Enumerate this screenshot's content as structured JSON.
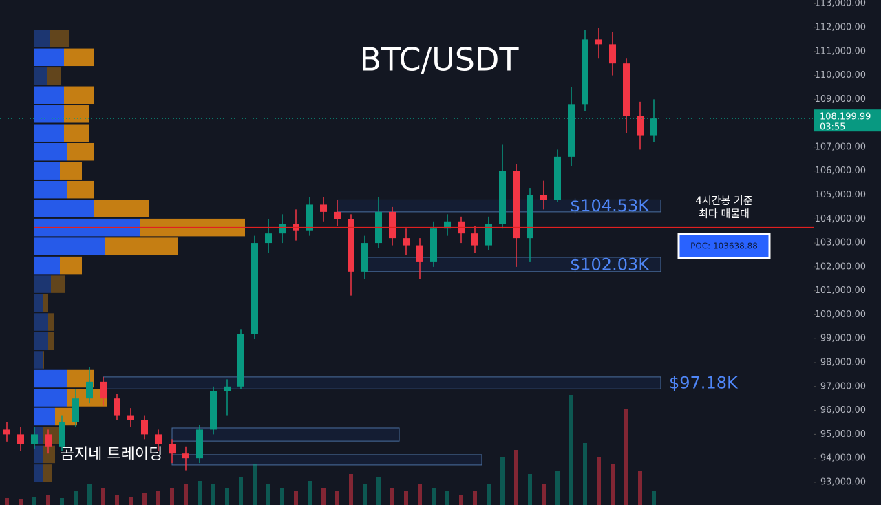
{
  "chart_data": {
    "type": "candlestick",
    "title": "BTC/USDT",
    "watermark": "곰지네 트레이딩",
    "annotation": "4시간봉 기준",
    "annotation_line2": "최다 매물대",
    "up_color": "#089981",
    "down_color": "#f23645",
    "open": [
      95200,
      95000,
      94600,
      95000,
      94500,
      95500,
      96500,
      97200,
      96500,
      95800,
      95600,
      95000,
      94600,
      94200,
      94000,
      95200,
      96800,
      97000,
      99200,
      103000,
      103400,
      103800,
      103500,
      104600,
      104300,
      104000,
      101800,
      103000,
      104300,
      103200,
      102900,
      102200,
      103600,
      103900,
      103400,
      102900,
      103800,
      106000,
      103200,
      105000,
      104800,
      106600,
      108800,
      111500,
      111300,
      110500,
      108300,
      107500
    ],
    "high": [
      95500,
      95300,
      95300,
      95200,
      95800,
      96900,
      97800,
      97400,
      96700,
      96100,
      95800,
      95200,
      94800,
      94500,
      95400,
      97000,
      97300,
      99400,
      103300,
      104000,
      104200,
      104400,
      104900,
      104900,
      104800,
      104200,
      103300,
      104900,
      104500,
      103600,
      103200,
      103900,
      104200,
      104100,
      103700,
      104100,
      107100,
      106300,
      105300,
      105600,
      106900,
      109500,
      111900,
      112000,
      111800,
      110700,
      108900,
      109000
    ],
    "low": [
      94700,
      94300,
      94400,
      94200,
      94300,
      95300,
      96300,
      96200,
      95600,
      95300,
      94800,
      94300,
      93800,
      93500,
      93800,
      95000,
      95800,
      96900,
      99000,
      102600,
      103000,
      103100,
      103300,
      103900,
      103700,
      100800,
      101500,
      102800,
      102900,
      102500,
      101500,
      102000,
      103300,
      103000,
      102600,
      102700,
      103600,
      102000,
      102200,
      104400,
      104700,
      106200,
      108500,
      110700,
      110000,
      107600,
      106900,
      107200
    ],
    "close": [
      95000,
      94600,
      95000,
      94500,
      95500,
      96500,
      97200,
      96500,
      95800,
      95600,
      95000,
      94600,
      94200,
      94000,
      95200,
      96800,
      97000,
      99200,
      103000,
      103400,
      103800,
      103500,
      104600,
      104300,
      104000,
      101800,
      103000,
      104300,
      103200,
      102900,
      102200,
      103600,
      103900,
      103400,
      102900,
      103800,
      106000,
      103200,
      105000,
      104800,
      106600,
      108800,
      111500,
      111300,
      110500,
      108300,
      107500,
      108200
    ],
    "volume": [
      10,
      8,
      12,
      15,
      10,
      20,
      30,
      25,
      15,
      12,
      18,
      20,
      25,
      30,
      35,
      30,
      25,
      40,
      60,
      30,
      25,
      20,
      35,
      25,
      20,
      45,
      30,
      40,
      25,
      20,
      30,
      25,
      20,
      15,
      20,
      30,
      70,
      80,
      45,
      30,
      50,
      160,
      90,
      70,
      60,
      140,
      50,
      20
    ],
    "profile_bins": [
      111940,
      111150,
      110360,
      109570,
      108780,
      107990,
      107200,
      106410,
      105620,
      104830,
      104040,
      103250,
      102460,
      101670,
      100880,
      100090,
      99300,
      98510,
      97720,
      96930,
      96140,
      95350,
      94560,
      93770,
      92980
    ],
    "profile_buy": [
      22,
      43,
      18,
      43,
      43,
      43,
      48,
      37,
      48,
      86,
      153,
      103,
      37,
      24,
      12,
      20,
      20,
      12,
      48,
      48,
      30,
      12,
      12,
      12
    ],
    "profile_sell": [
      28,
      44,
      20,
      44,
      37,
      37,
      39,
      32,
      39,
      80,
      153,
      106,
      32,
      20,
      8,
      8,
      8,
      2,
      39,
      57,
      32,
      28,
      18,
      14
    ],
    "zones": [
      {
        "label": "$104.53K",
        "top": 104800,
        "bottom": 104300,
        "start": 24,
        "end": 47
      },
      {
        "label": "$102.03K",
        "top": 102400,
        "bottom": 101800,
        "start": 26,
        "end": 47
      },
      {
        "label": "$97.18K",
        "top": 97400,
        "bottom": 96900,
        "start": 7,
        "end": 47
      },
      {
        "top": 95270,
        "bottom": 94720,
        "start": 12,
        "end": 28
      },
      {
        "top": 94150,
        "bottom": 93720,
        "start": 12,
        "end": 34
      }
    ],
    "poc": 103638.88,
    "poc_label": "POC: 103638.88",
    "last_price": 108199.99,
    "last_price_label": "108,199.99",
    "countdown": "03:55",
    "ylim": [
      92050,
      113150
    ],
    "yticks": [
      {
        "value": 93000,
        "label": "93,000.00"
      },
      {
        "value": 94000,
        "label": "94,000.00"
      },
      {
        "value": 95000,
        "label": "95,000.00"
      },
      {
        "value": 96000,
        "label": "96,000.00"
      },
      {
        "value": 97000,
        "label": "97,000.00"
      },
      {
        "value": 98000,
        "label": "98,000.00"
      },
      {
        "value": 99000,
        "label": "99,000.00"
      },
      {
        "value": 100000,
        "label": "100,000.00"
      },
      {
        "value": 101000,
        "label": "101,000.00"
      },
      {
        "value": 102000,
        "label": "102,000.00"
      },
      {
        "value": 103000,
        "label": "103,000.00"
      },
      {
        "value": 104000,
        "label": "104,000.00"
      },
      {
        "value": 105000,
        "label": "105,000.00"
      },
      {
        "value": 106000,
        "label": "106,000.00"
      },
      {
        "value": 107000,
        "label": "107,000.00"
      },
      {
        "value": 108000,
        "label": "108,000.00"
      },
      {
        "value": 109000,
        "label": "109,000.00"
      },
      {
        "value": 110000,
        "label": "110,000.00"
      },
      {
        "value": 111000,
        "label": "111,000.00"
      },
      {
        "value": 112000,
        "label": "112,000.00"
      },
      {
        "value": 113000,
        "label": "113,000.00"
      }
    ]
  }
}
